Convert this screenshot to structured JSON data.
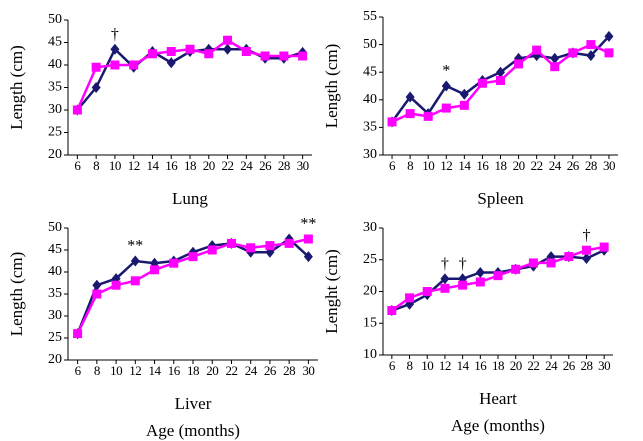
{
  "chart_data": [
    {
      "type": "line",
      "title": "Lung",
      "y_label": "Length (cm)",
      "x": [
        6,
        8,
        10,
        12,
        14,
        16,
        18,
        20,
        22,
        24,
        26,
        28,
        30
      ],
      "xlim": [
        5,
        31
      ],
      "xticks": [
        6,
        8,
        10,
        12,
        14,
        16,
        18,
        20,
        22,
        24,
        26,
        28,
        30
      ],
      "ylim": [
        20,
        50
      ],
      "yticks": [
        20,
        25,
        30,
        35,
        40,
        45,
        50
      ],
      "series": [
        {
          "color": "#191970",
          "marker": "diamond",
          "values": [
            30,
            35,
            43.5,
            39.5,
            43,
            40.5,
            43,
            43.5,
            43.5,
            43.5,
            41.5,
            41.5,
            42.8
          ]
        },
        {
          "color": "#ff00ff",
          "marker": "square",
          "values": [
            30,
            39.5,
            40,
            40,
            42.5,
            43,
            43.5,
            42.5,
            45.5,
            43,
            42,
            42,
            42
          ]
        }
      ],
      "annotations": [
        {
          "text": "†",
          "x": 10
        }
      ]
    },
    {
      "type": "line",
      "title": "Spleen",
      "y_label": "Length (cm)",
      "x": [
        6,
        8,
        10,
        12,
        14,
        16,
        18,
        20,
        22,
        24,
        26,
        28,
        30
      ],
      "xlim": [
        5,
        31
      ],
      "xticks": [
        6,
        8,
        10,
        12,
        14,
        16,
        18,
        20,
        22,
        24,
        26,
        28,
        30
      ],
      "ylim": [
        30,
        55
      ],
      "yticks": [
        30,
        35,
        40,
        45,
        50,
        55
      ],
      "series": [
        {
          "color": "#191970",
          "marker": "diamond",
          "values": [
            36,
            40.5,
            37.5,
            42.5,
            41,
            43.5,
            45,
            47.5,
            48,
            47.5,
            48.5,
            48,
            51.5
          ]
        },
        {
          "color": "#ff00ff",
          "marker": "square",
          "values": [
            36,
            37.5,
            37,
            38.5,
            39,
            43,
            43.5,
            46.5,
            49,
            46,
            48.5,
            50,
            48.5
          ]
        }
      ],
      "annotations": [
        {
          "text": "*",
          "x": 12
        }
      ]
    },
    {
      "type": "line",
      "title": "Liver",
      "x_label": "Age (months)",
      "y_label": "Length (cm)",
      "x": [
        6,
        8,
        10,
        12,
        14,
        16,
        18,
        20,
        22,
        24,
        26,
        28,
        30
      ],
      "xlim": [
        5,
        31
      ],
      "xticks": [
        6,
        8,
        10,
        12,
        14,
        16,
        18,
        20,
        22,
        24,
        26,
        28,
        30
      ],
      "ylim": [
        20,
        50
      ],
      "yticks": [
        20,
        25,
        30,
        35,
        40,
        45,
        50
      ],
      "series": [
        {
          "color": "#191970",
          "marker": "diamond",
          "values": [
            26,
            37,
            38.5,
            42.5,
            42,
            42.5,
            44.5,
            46,
            46.5,
            44.5,
            44.5,
            47.5,
            43.5
          ]
        },
        {
          "color": "#ff00ff",
          "marker": "square",
          "values": [
            26,
            35,
            37,
            38,
            40.5,
            42,
            43.5,
            45,
            46.5,
            45.5,
            46,
            46.5,
            47.5
          ]
        }
      ],
      "annotations": [
        {
          "text": "**",
          "x": 12
        },
        {
          "text": "**",
          "x": 30
        }
      ]
    },
    {
      "type": "line",
      "title": "Heart",
      "x_label": "Age (months)",
      "y_label": "Lenght (cm)",
      "x": [
        6,
        8,
        10,
        12,
        14,
        16,
        18,
        20,
        22,
        24,
        26,
        28,
        30
      ],
      "xlim": [
        5,
        31
      ],
      "xticks": [
        6,
        8,
        10,
        12,
        14,
        16,
        18,
        20,
        22,
        24,
        26,
        28,
        30
      ],
      "ylim": [
        10,
        30
      ],
      "yticks": [
        10,
        15,
        20,
        25,
        30
      ],
      "series": [
        {
          "color": "#191970",
          "marker": "diamond",
          "values": [
            17,
            18,
            19.5,
            22,
            22,
            23,
            23,
            23.5,
            24,
            25.5,
            25.5,
            25.2,
            26.5
          ]
        },
        {
          "color": "#ff00ff",
          "marker": "square",
          "values": [
            17,
            19,
            20,
            20.5,
            21,
            21.5,
            22.5,
            23.5,
            24.5,
            24.5,
            25.5,
            26.5,
            27
          ]
        }
      ],
      "annotations": [
        {
          "text": "†",
          "x": 12
        },
        {
          "text": "†",
          "x": 14
        },
        {
          "text": "†",
          "x": 28
        }
      ]
    }
  ]
}
